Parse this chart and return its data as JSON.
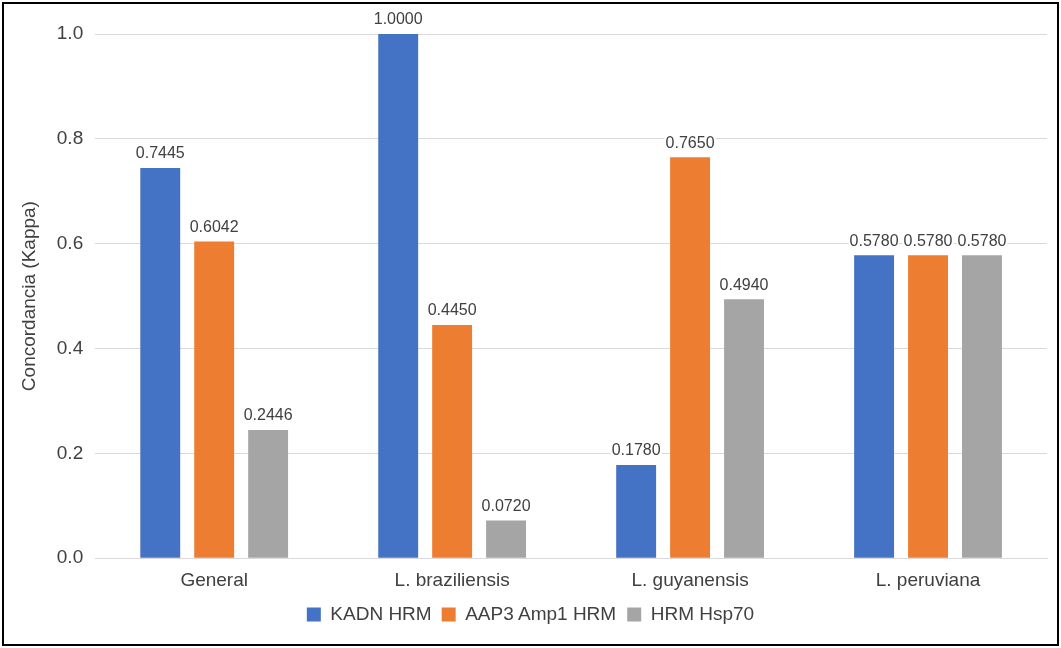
{
  "chart_data": {
    "type": "bar",
    "ylabel": "Concordancia (Kappa)",
    "categories": [
      "General",
      "L. braziliensis",
      "L. guyanensis",
      "L. peruviana"
    ],
    "series": [
      {
        "name": "KADN HRM",
        "color": "#4472c4",
        "values": [
          0.7445,
          1.0,
          0.178,
          0.578
        ],
        "value_labels": [
          "0.7445",
          "1.0000",
          "0.1780",
          "0.5780"
        ]
      },
      {
        "name": "AAP3 Amp1 HRM",
        "color": "#ed7d31",
        "values": [
          0.6042,
          0.445,
          0.765,
          0.578
        ],
        "value_labels": [
          "0.6042",
          "0.4450",
          "0.7650",
          "0.5780"
        ]
      },
      {
        "name": "HRM Hsp70",
        "color": "#a5a5a5",
        "values": [
          0.2446,
          0.072,
          0.494,
          0.578
        ],
        "value_labels": [
          "0.2446",
          "0.0720",
          "0.4940",
          "0.5780"
        ]
      }
    ],
    "ylim": [
      0,
      1.0
    ],
    "yticks": [
      {
        "value": 0,
        "label": "0.0"
      },
      {
        "value": 0.2,
        "label": "0.2"
      },
      {
        "value": 0.4,
        "label": "0.4"
      },
      {
        "value": 0.6,
        "label": "0.6"
      },
      {
        "value": 0.8,
        "label": "0.8"
      },
      {
        "value": 1.0,
        "label": "1.0"
      }
    ],
    "grid": "y",
    "legend": "bottom"
  }
}
